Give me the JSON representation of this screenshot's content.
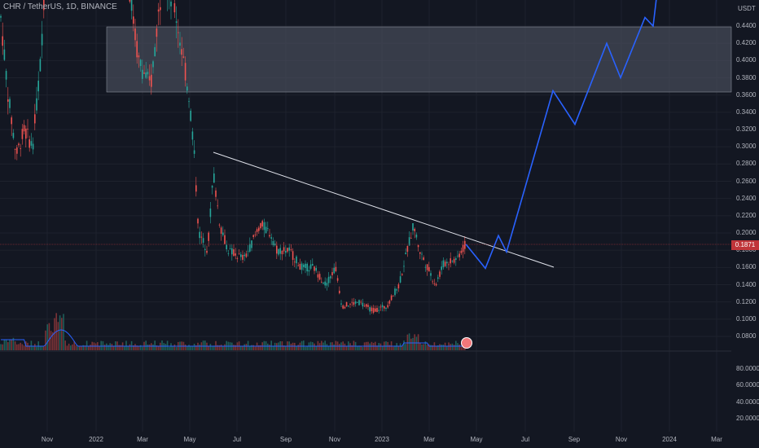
{
  "legend": {
    "symbol": "CHR / TetherUS, 1D, BINANCE"
  },
  "price_axis": {
    "unit": "USDT",
    "ticks": [
      "0.4400",
      "0.4200",
      "0.4000",
      "0.3800",
      "0.3600",
      "0.3400",
      "0.3200",
      "0.3000",
      "0.2800",
      "0.2600",
      "0.2400",
      "0.2200",
      "0.2000",
      "0.1800",
      "0.1600",
      "0.1400",
      "0.1200",
      "0.1000",
      "0.0800"
    ],
    "current_price_label": "0.1871",
    "current_price_color": "#c0353a"
  },
  "volume_axis": {
    "ticks": [
      "80.0000",
      "60.0000",
      "40.0000",
      "20.0000"
    ]
  },
  "time_axis": {
    "labels": [
      "Nov",
      "2022",
      "Mar",
      "May",
      "Jul",
      "Sep",
      "Nov",
      "2023",
      "Mar",
      "May",
      "Jul",
      "Sep",
      "Nov",
      "2024",
      "Mar"
    ]
  },
  "colors": {
    "background": "#131722",
    "up_candle": "#26a69a",
    "down_candle": "#ef5350",
    "resistance_zone": "#4c5060",
    "trendline": "#ffffff",
    "projection": "#2962ff",
    "volume_ma": "#2962ff"
  },
  "annotations": {
    "resistance_zone": "0.3600–0.4400",
    "trendline": "descending",
    "projection": "bullish breakout path"
  },
  "chart_data": {
    "type": "candlestick",
    "projection_path": [
      {
        "t": "Apr",
        "y": 0.187
      },
      {
        "t": "May",
        "y": 0.159
      },
      {
        "t": "May",
        "y": 0.197
      },
      {
        "t": "Jun",
        "y": 0.178
      },
      {
        "t": "Aug",
        "y": 0.365
      },
      {
        "t": "Sep",
        "y": 0.326
      },
      {
        "t": "Oct",
        "y": 0.42
      },
      {
        "t": "Nov",
        "y": 0.38
      },
      {
        "t": "Dec",
        "y": 0.45
      },
      {
        "t": "Dec",
        "y": 0.44
      },
      {
        "t": "Jan",
        "y": 0.52
      }
    ]
  }
}
